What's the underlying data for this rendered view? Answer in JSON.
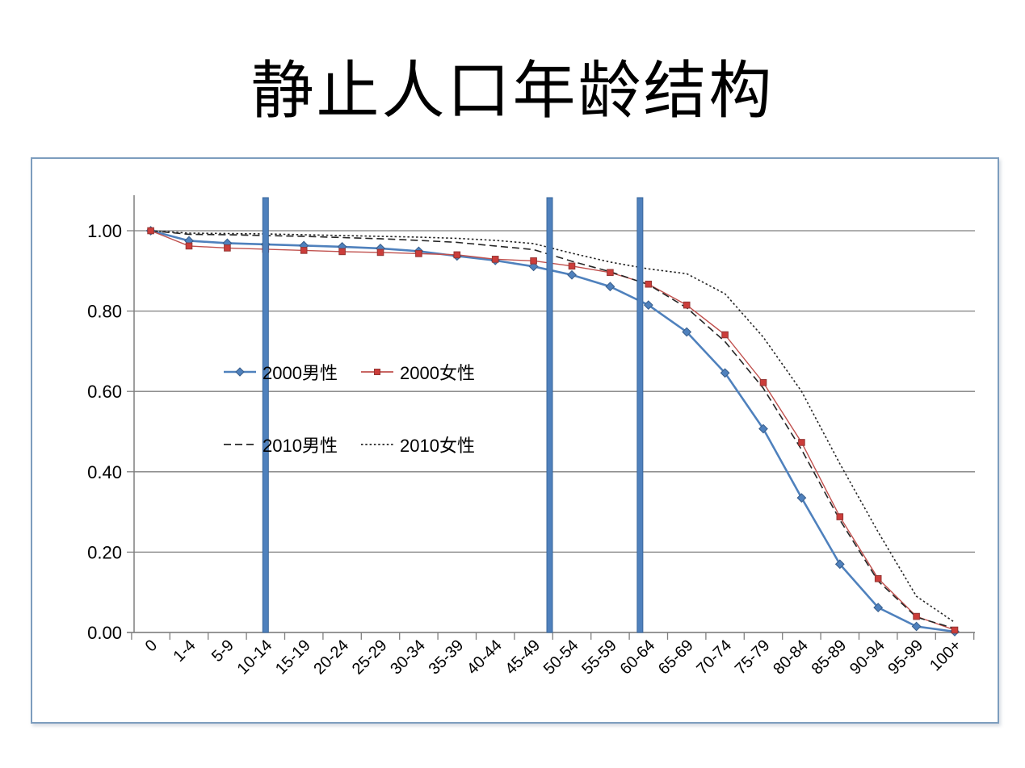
{
  "title": "静止人口年龄结构",
  "chart_box": {
    "border_color": "#7d9dbe",
    "background": "#ffffff"
  },
  "chart_data": {
    "type": "line",
    "title": "静止人口年龄结构",
    "categories": [
      "0",
      "1-4",
      "5-9",
      "10-14",
      "15-19",
      "20-24",
      "25-29",
      "30-34",
      "35-39",
      "40-44",
      "45-49",
      "50-54",
      "55-59",
      "60-64",
      "65-69",
      "70-74",
      "75-79",
      "80-84",
      "85-89",
      "90-94",
      "95-99",
      "100+"
    ],
    "series": [
      {
        "name": "2000男性",
        "color": "#4f81bd",
        "line_width": 2.6,
        "dash": "",
        "marker": "diamond",
        "marker_color": "#4f81bd",
        "marker_stroke": "#385d8a",
        "values": [
          1.0,
          0.975,
          0.969,
          0.966,
          0.963,
          0.96,
          0.956,
          0.949,
          0.937,
          0.926,
          0.911,
          0.89,
          0.861,
          0.815,
          0.748,
          0.646,
          0.507,
          0.335,
          0.17,
          0.062,
          0.015,
          0.002
        ]
      },
      {
        "name": "2000女性",
        "color": "#c0504d",
        "line_width": 1.4,
        "dash": "",
        "marker": "square",
        "marker_color": "#cc3d3a",
        "marker_stroke": "#943634",
        "values": [
          1.0,
          0.962,
          0.957,
          0.954,
          0.951,
          0.948,
          0.946,
          0.943,
          0.94,
          0.929,
          0.925,
          0.912,
          0.896,
          0.867,
          0.815,
          0.741,
          0.622,
          0.473,
          0.288,
          0.134,
          0.04,
          0.006
        ]
      },
      {
        "name": "2010男性",
        "color": "#262626",
        "line_width": 1.6,
        "dash": "9,5",
        "marker": "none",
        "marker_color": "",
        "marker_stroke": "",
        "values": [
          1.0,
          0.991,
          0.99,
          0.988,
          0.986,
          0.983,
          0.98,
          0.976,
          0.971,
          0.962,
          0.953,
          0.924,
          0.898,
          0.866,
          0.808,
          0.724,
          0.608,
          0.455,
          0.28,
          0.128,
          0.038,
          0.01
        ]
      },
      {
        "name": "2010女性",
        "color": "#262626",
        "line_width": 1.6,
        "dash": "2.5,2.8",
        "marker": "none",
        "marker_color": "",
        "marker_stroke": "",
        "values": [
          1.0,
          0.994,
          0.993,
          0.992,
          0.99,
          0.988,
          0.986,
          0.984,
          0.981,
          0.976,
          0.968,
          0.944,
          0.922,
          0.905,
          0.893,
          0.843,
          0.735,
          0.6,
          0.42,
          0.25,
          0.09,
          0.025
        ]
      }
    ],
    "y_ticks": [
      "1.00",
      "0.80",
      "0.60",
      "0.40",
      "0.20",
      "0.00"
    ],
    "ylim": [
      0,
      1.09
    ],
    "grid": true,
    "gridline_color": "#7f7f7f",
    "axis_color": "#7f7f7f",
    "x_label_rotation": -45,
    "legend_position": "inside-left",
    "vertical_highlight_bars": {
      "color": "#4f81bd",
      "border": "#3a679c",
      "x_indices": [
        3.0,
        10.42,
        12.78
      ]
    }
  }
}
